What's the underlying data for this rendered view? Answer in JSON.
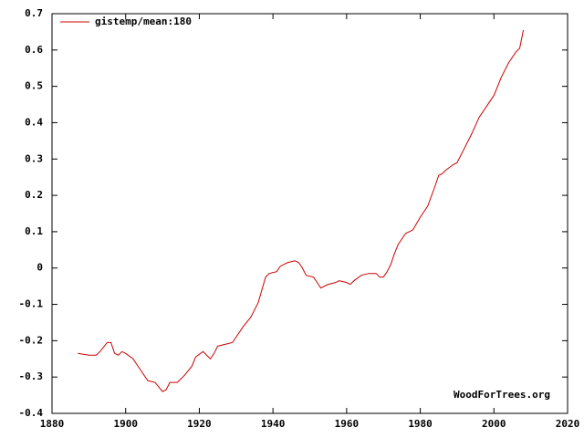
{
  "chart_data": {
    "type": "line",
    "annotation": "WoodForTrees.org",
    "x": [
      1887,
      1890,
      1892,
      1893,
      1895,
      1896,
      1897,
      1898,
      1899,
      1900,
      1902,
      1904,
      1906,
      1908,
      1910,
      1911,
      1912,
      1914,
      1916,
      1918,
      1919,
      1921,
      1922,
      1923,
      1924,
      1925,
      1927,
      1929,
      1930,
      1932,
      1934,
      1936,
      1937,
      1938,
      1939,
      1941,
      1942,
      1944,
      1946,
      1947,
      1948,
      1949,
      1951,
      1952,
      1953,
      1955,
      1957,
      1958,
      1960,
      1961,
      1962,
      1964,
      1966,
      1968,
      1969,
      1970,
      1971,
      1972,
      1973,
      1974,
      1976,
      1977,
      1978,
      1980,
      1982,
      1984,
      1985,
      1986,
      1987,
      1989,
      1990,
      1992,
      1994,
      1996,
      1998,
      2000,
      2002,
      2004,
      2005,
      2006,
      2007,
      2008
    ],
    "series": [
      {
        "name": "gistemp/mean:180",
        "color": "#cc0000",
        "values": [
          -0.235,
          -0.24,
          -0.24,
          -0.23,
          -0.205,
          -0.205,
          -0.235,
          -0.24,
          -0.23,
          -0.235,
          -0.25,
          -0.28,
          -0.31,
          -0.315,
          -0.34,
          -0.335,
          -0.315,
          -0.315,
          -0.295,
          -0.27,
          -0.245,
          -0.23,
          -0.24,
          -0.25,
          -0.235,
          -0.215,
          -0.21,
          -0.205,
          -0.19,
          -0.16,
          -0.135,
          -0.095,
          -0.06,
          -0.025,
          -0.015,
          -0.01,
          0.005,
          0.015,
          0.02,
          0.015,
          0.0,
          -0.02,
          -0.025,
          -0.04,
          -0.055,
          -0.045,
          -0.04,
          -0.035,
          -0.04,
          -0.045,
          -0.035,
          -0.02,
          -0.015,
          -0.015,
          -0.025,
          -0.025,
          -0.01,
          0.01,
          0.04,
          0.065,
          0.095,
          0.1,
          0.105,
          0.14,
          0.17,
          0.225,
          0.255,
          0.26,
          0.27,
          0.285,
          0.29,
          0.33,
          0.37,
          0.415,
          0.445,
          0.475,
          0.525,
          0.565,
          0.58,
          0.595,
          0.605,
          0.655
        ]
      }
    ],
    "xlim": [
      1880,
      2020
    ],
    "xticks": [
      1880,
      1900,
      1920,
      1940,
      1960,
      1980,
      2000,
      2020
    ],
    "ylim": [
      -0.4,
      0.7
    ],
    "yticks": [
      -0.4,
      -0.3,
      -0.2,
      -0.1,
      0,
      0.1,
      0.2,
      0.3,
      0.4,
      0.5,
      0.6,
      0.7
    ],
    "legend": "top-left"
  }
}
